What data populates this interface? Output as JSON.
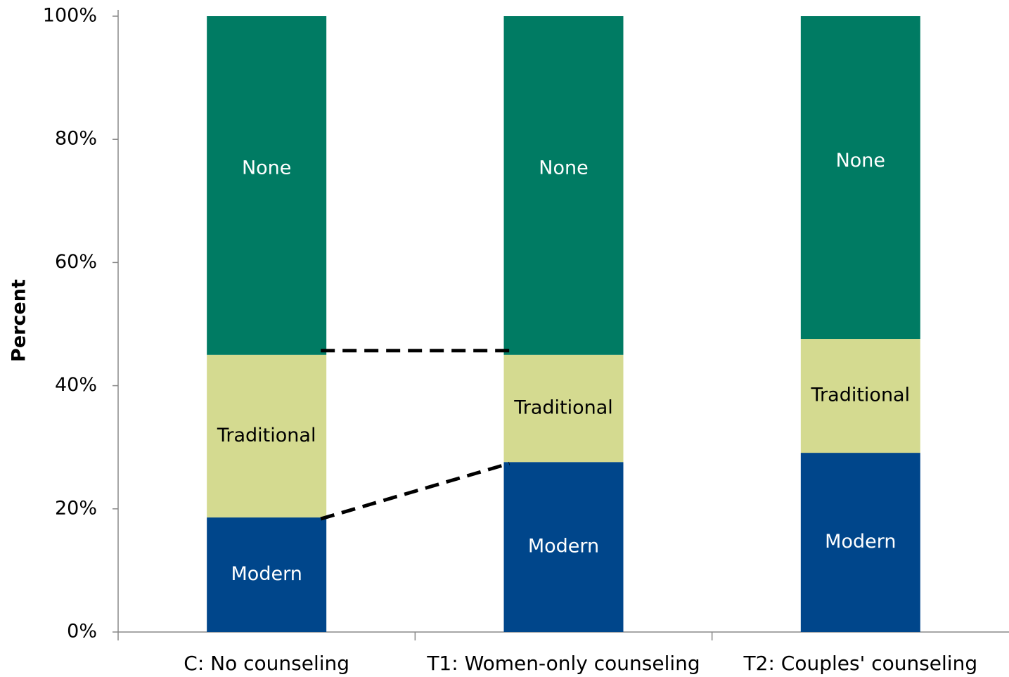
{
  "chart_data": {
    "type": "stacked_bar",
    "y_label": "Percent",
    "categories": [
      "C: No counseling",
      "T1: Women-only counseling",
      "T2: Couples' counseling"
    ],
    "series": [
      {
        "name": "Modern",
        "color": "#00468b",
        "label_color": "#ffffff",
        "values": [
          18.6,
          27.6,
          29.1
        ]
      },
      {
        "name": "Traditional",
        "color": "#d4da90",
        "label_color": "#000000",
        "values": [
          26.4,
          17.4,
          18.5
        ]
      },
      {
        "name": "None",
        "color": "#007b63",
        "label_color": "#ffffff",
        "values": [
          55.0,
          55.0,
          52.4
        ]
      }
    ],
    "ylim": [
      0,
      100
    ],
    "yticks": [
      {
        "value": 0,
        "label": "0%"
      },
      {
        "value": 20,
        "label": "20%"
      },
      {
        "value": 40,
        "label": "40%"
      },
      {
        "value": 60,
        "label": "60%"
      },
      {
        "value": 80,
        "label": "80%"
      },
      {
        "value": 100,
        "label": "100%"
      }
    ]
  }
}
